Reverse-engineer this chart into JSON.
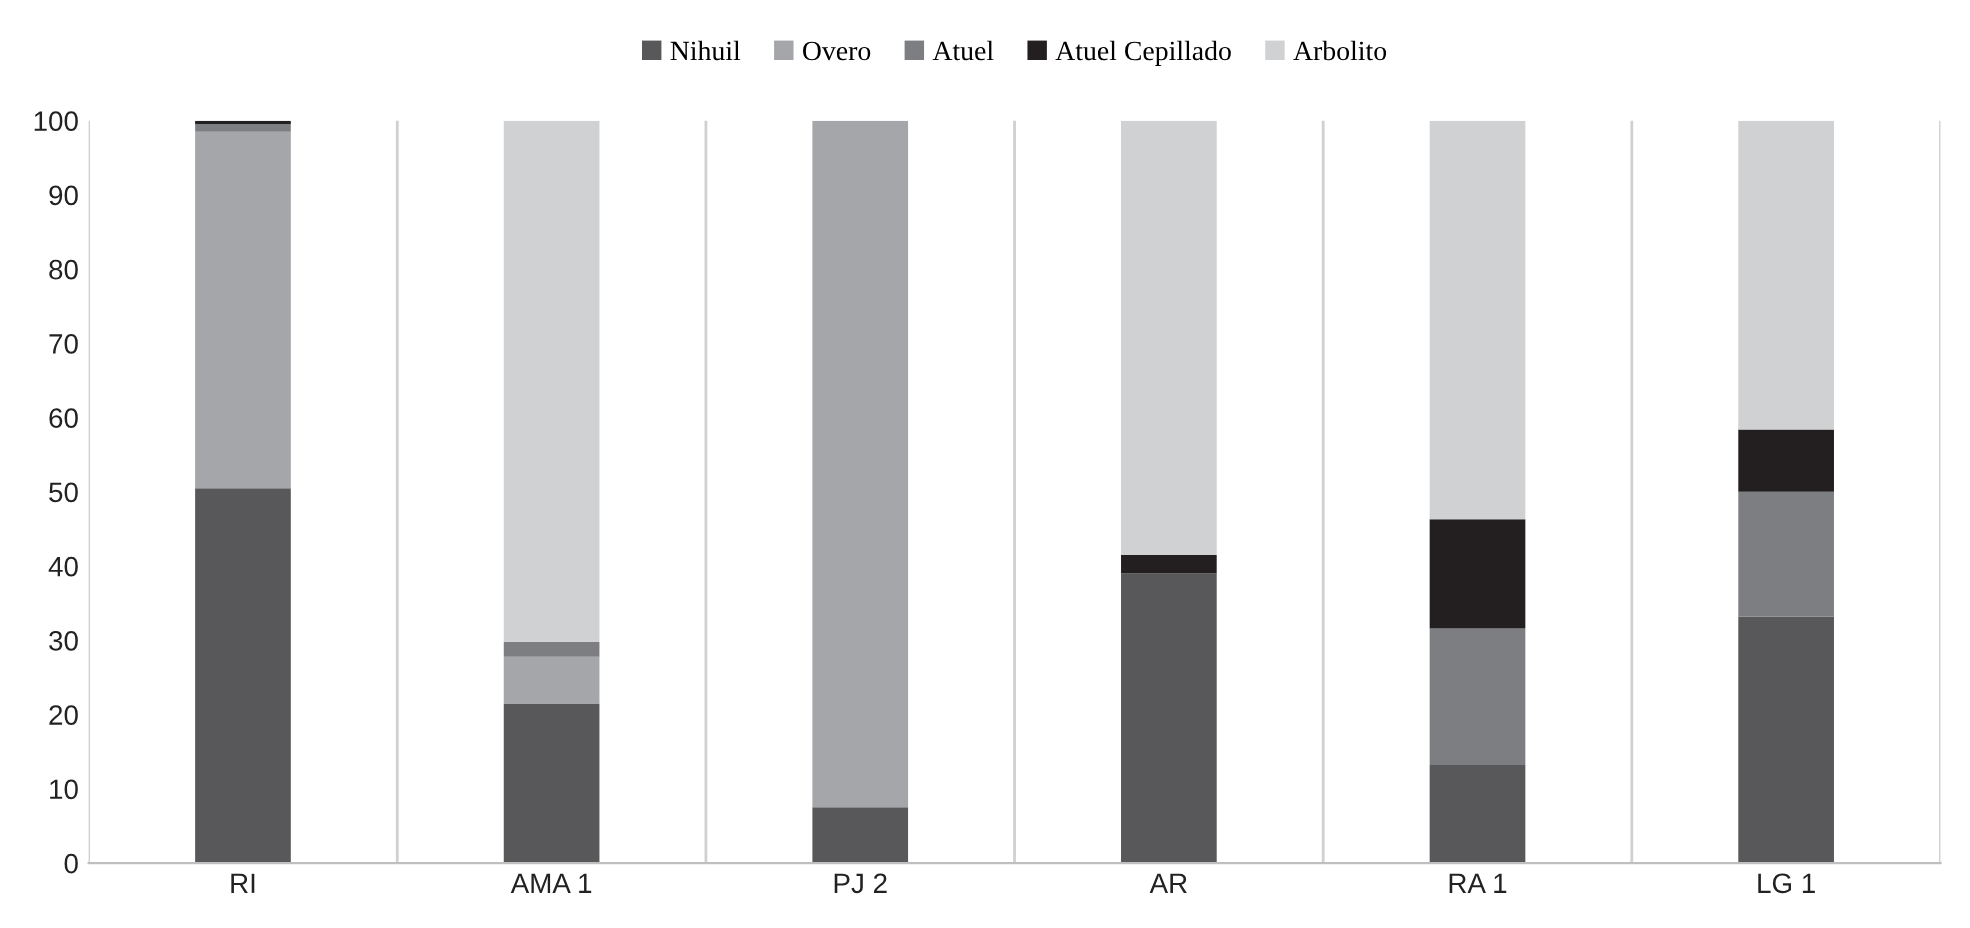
{
  "chart_data": {
    "type": "bar",
    "stacked": true,
    "categories": [
      "RI",
      "AMA 1",
      "PJ 2",
      "AR",
      "RA 1",
      "LG 1"
    ],
    "series": [
      {
        "name": "Nihuil",
        "color": "#58585a",
        "values": [
          50.5,
          21.5,
          7.5,
          39,
          13.2,
          33.2
        ]
      },
      {
        "name": "Overo",
        "color": "#a5a6a9",
        "values": [
          48,
          6.3,
          92.5,
          0,
          0,
          0
        ]
      },
      {
        "name": "Atuel",
        "color": "#7d7e81",
        "values": [
          1,
          2,
          0,
          0,
          18.4,
          16.8
        ]
      },
      {
        "name": "Atuel Cepillado",
        "color": "#231f20",
        "values": [
          0.5,
          0,
          0,
          2.5,
          14.7,
          8.4
        ]
      },
      {
        "name": "Arbolito",
        "color": "#d0d1d3",
        "values": [
          0,
          70.2,
          0,
          58.5,
          53.7,
          41.6
        ]
      }
    ],
    "ylim": [
      0,
      100
    ],
    "yticks": [
      0,
      10,
      20,
      30,
      40,
      50,
      60,
      70,
      80,
      90,
      100
    ],
    "grid": "x",
    "legend": "top"
  }
}
